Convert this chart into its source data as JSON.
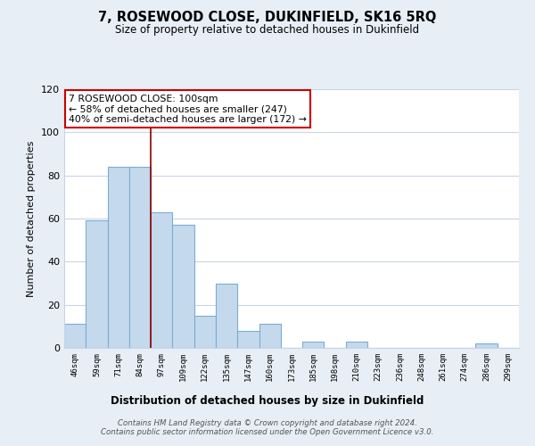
{
  "title": "7, ROSEWOOD CLOSE, DUKINFIELD, SK16 5RQ",
  "subtitle": "Size of property relative to detached houses in Dukinfield",
  "xlabel": "Distribution of detached houses by size in Dukinfield",
  "ylabel": "Number of detached properties",
  "categories": [
    "46sqm",
    "59sqm",
    "71sqm",
    "84sqm",
    "97sqm",
    "109sqm",
    "122sqm",
    "135sqm",
    "147sqm",
    "160sqm",
    "173sqm",
    "185sqm",
    "198sqm",
    "210sqm",
    "223sqm",
    "236sqm",
    "248sqm",
    "261sqm",
    "274sqm",
    "286sqm",
    "299sqm"
  ],
  "values": [
    11,
    59,
    84,
    84,
    63,
    57,
    15,
    30,
    8,
    11,
    0,
    3,
    0,
    3,
    0,
    0,
    0,
    0,
    0,
    2,
    0
  ],
  "bar_color_fill": "#c5d9ed",
  "bar_color_edge": "#7aadd4",
  "vline_index": 4,
  "vline_color": "#8b0000",
  "annotation_text": "7 ROSEWOOD CLOSE: 100sqm\n← 58% of detached houses are smaller (247)\n40% of semi-detached houses are larger (172) →",
  "annotation_box_facecolor": "#ffffff",
  "annotation_box_edgecolor": "#cc0000",
  "ylim": [
    0,
    120
  ],
  "yticks": [
    0,
    20,
    40,
    60,
    80,
    100,
    120
  ],
  "footer_line1": "Contains HM Land Registry data © Crown copyright and database right 2024.",
  "footer_line2": "Contains public sector information licensed under the Open Government Licence v3.0.",
  "background_color": "#e8eef6",
  "plot_background_color": "#ffffff",
  "grid_color": "#c8d4e8",
  "title_fontsize": 10.5,
  "subtitle_fontsize": 8.5
}
